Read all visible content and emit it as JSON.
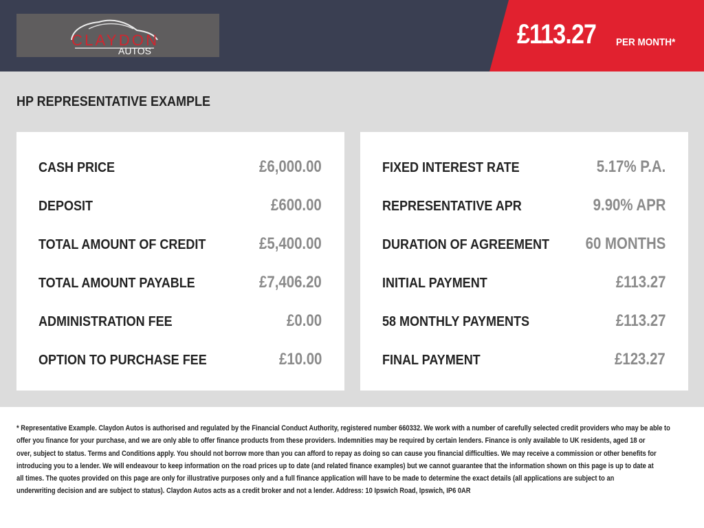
{
  "header": {
    "logo": {
      "line1": "CLAYDON",
      "line2": "AUTOS"
    },
    "price": "£113.27",
    "per_month": "PER MONTH*",
    "colors": {
      "dark": "#3a3f52",
      "accent": "#e1212f"
    }
  },
  "main": {
    "title": "HP REPRESENTATIVE EXAMPLE",
    "left": [
      {
        "label": "CASH PRICE",
        "value": "£6,000.00"
      },
      {
        "label": "DEPOSIT",
        "value": "£600.00"
      },
      {
        "label": "TOTAL AMOUNT OF CREDIT",
        "value": "£5,400.00"
      },
      {
        "label": "TOTAL AMOUNT PAYABLE",
        "value": "£7,406.20"
      },
      {
        "label": "ADMINISTRATION FEE",
        "value": "£0.00"
      },
      {
        "label": "OPTION TO PURCHASE FEE",
        "value": "£10.00"
      }
    ],
    "right": [
      {
        "label": "FIXED INTEREST RATE",
        "value": "5.17% P.A."
      },
      {
        "label": "REPRESENTATIVE APR",
        "value": "9.90% APR"
      },
      {
        "label": "DURATION OF AGREEMENT",
        "value": "60 MONTHS"
      },
      {
        "label": "INITIAL PAYMENT",
        "value": "£113.27"
      },
      {
        "label": "58 MONTHLY PAYMENTS",
        "value": "£113.27"
      },
      {
        "label": "FINAL PAYMENT",
        "value": "£123.27"
      }
    ]
  },
  "footer": {
    "lines": [
      "* Representative Example. Claydon Autos is authorised and regulated by the Financial Conduct Authority, registered number 660332. We work with a number of carefully selected credit providers who may be able to",
      "offer you finance for your purchase, and we are only able to offer finance products from these providers. Indemnities may be required by certain lenders. Finance is only available to UK residents, aged 18 or",
      "over, subject to status. Terms and Conditions apply. You should not borrow more than you can afford to repay as doing so can cause you financial difficulties. We may receive a commission or other benefits for",
      "introducing you to a lender. We will endeavour to keep information on the road prices up to date (and related finance examples) but we cannot guarantee that the information shown on this page is up to date at",
      "all times. The quotes provided on this page are only for illustrative purposes only and a full finance application will have to be made to determine the exact details (all applications are subject to an",
      "underwriting decision and are subject to status). Claydon Autos acts as a credit broker and not a lender. Address: 10 Ipswich Road, Ipswich, IP6 0AR"
    ]
  }
}
